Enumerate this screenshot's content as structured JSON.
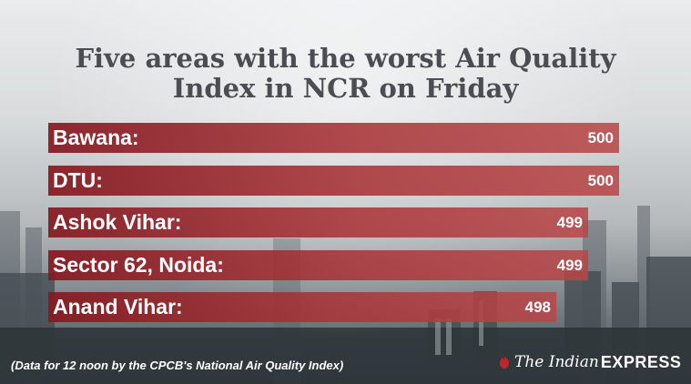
{
  "chart_data": {
    "type": "bar",
    "orientation": "horizontal",
    "title": "Five areas with the worst Air Quality Index in NCR on Friday",
    "title_lines": [
      "Five areas with the worst Air Quality",
      "Index in NCR on Friday"
    ],
    "categories": [
      "Bawana:",
      "DTU:",
      "Ashok Vihar:",
      "Sector 62, Noida:",
      "Anand Vihar:"
    ],
    "values": [
      500,
      500,
      499,
      499,
      498
    ],
    "value_labels": [
      "500",
      "500",
      "499",
      "499",
      "498"
    ],
    "xlim": [
      496,
      500
    ],
    "grid": false,
    "xlabel": "",
    "ylabel": "",
    "bar_color": "#a8343a"
  },
  "footnote": "(Data for 12 noon by the CPCB's National Air Quality Index)",
  "logo": {
    "text_italic": "The Indian",
    "text_bold": "EXPRESS",
    "icon": "flame-mark-icon",
    "color": "#c0252b"
  }
}
